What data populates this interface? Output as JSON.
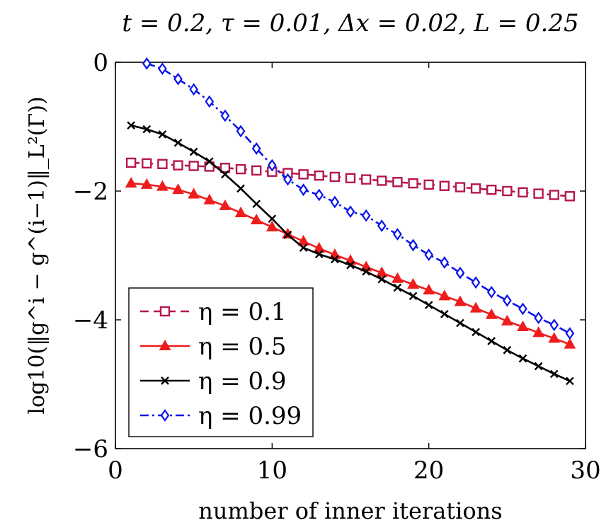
{
  "chart_data": {
    "type": "line",
    "title": "t = 0.2, τ = 0.01, Δx = 0.02, L = 0.25",
    "xlabel": "number of inner iterations",
    "ylabel": "log10(‖g^i − g^(i−1)‖_L²(Γ))",
    "xlim": [
      0,
      30
    ],
    "ylim": [
      -6,
      0
    ],
    "xticks": [
      0,
      10,
      20,
      30
    ],
    "yticks": [
      0,
      -2,
      -4,
      -6
    ],
    "xtick_labels": [
      "0",
      "10",
      "20",
      "30"
    ],
    "ytick_labels": [
      "0",
      "−2",
      "−4",
      "−6"
    ],
    "grid": false,
    "legend_position": "bottom-left",
    "series": [
      {
        "name": "η = 0.1",
        "color": "#b5174e",
        "dash": "dashed",
        "marker": "square",
        "x": [
          1,
          2,
          3,
          4,
          5,
          6,
          7,
          8,
          9,
          10,
          11,
          12,
          13,
          14,
          15,
          16,
          17,
          18,
          19,
          20,
          21,
          22,
          23,
          24,
          25,
          26,
          27,
          28,
          29
        ],
        "y": [
          -1.56,
          -1.57,
          -1.58,
          -1.6,
          -1.61,
          -1.62,
          -1.64,
          -1.66,
          -1.68,
          -1.7,
          -1.72,
          -1.74,
          -1.76,
          -1.78,
          -1.8,
          -1.82,
          -1.84,
          -1.86,
          -1.88,
          -1.9,
          -1.92,
          -1.94,
          -1.96,
          -1.98,
          -2.0,
          -2.02,
          -2.04,
          -2.06,
          -2.08
        ]
      },
      {
        "name": "η = 0.5",
        "color": "#ee1c1c",
        "dash": "solid",
        "marker": "triangle",
        "x": [
          1,
          2,
          3,
          4,
          5,
          6,
          7,
          8,
          9,
          10,
          11,
          12,
          13,
          14,
          15,
          16,
          17,
          18,
          19,
          20,
          21,
          22,
          23,
          24,
          25,
          26,
          27,
          28,
          29
        ],
        "y": [
          -1.88,
          -1.9,
          -1.93,
          -1.98,
          -2.05,
          -2.14,
          -2.23,
          -2.34,
          -2.45,
          -2.56,
          -2.67,
          -2.78,
          -2.89,
          -2.99,
          -3.08,
          -3.18,
          -3.27,
          -3.36,
          -3.45,
          -3.54,
          -3.63,
          -3.72,
          -3.82,
          -3.92,
          -4.02,
          -4.11,
          -4.2,
          -4.29,
          -4.38
        ]
      },
      {
        "name": "η = 0.9",
        "color": "#000000",
        "dash": "solid",
        "marker": "cross",
        "x": [
          1,
          2,
          3,
          4,
          5,
          6,
          7,
          8,
          9,
          10,
          11,
          12,
          13,
          14,
          15,
          16,
          17,
          18,
          19,
          20,
          21,
          22,
          23,
          24,
          25,
          26,
          27,
          28,
          29
        ],
        "y": [
          -0.98,
          -1.04,
          -1.12,
          -1.25,
          -1.39,
          -1.54,
          -1.74,
          -1.96,
          -2.2,
          -2.43,
          -2.68,
          -2.88,
          -2.98,
          -3.06,
          -3.15,
          -3.25,
          -3.37,
          -3.5,
          -3.63,
          -3.77,
          -3.91,
          -4.05,
          -4.19,
          -4.33,
          -4.47,
          -4.6,
          -4.72,
          -4.84,
          -4.95
        ]
      },
      {
        "name": "η = 0.99",
        "color": "#0a14e8",
        "dash": "dashdot",
        "marker": "diamond",
        "x": [
          2,
          3,
          4,
          5,
          6,
          7,
          8,
          9,
          10,
          11,
          12,
          13,
          14,
          15,
          16,
          17,
          18,
          19,
          20,
          21,
          22,
          23,
          24,
          25,
          26,
          27,
          28,
          29
        ],
        "y": [
          -0.02,
          -0.1,
          -0.26,
          -0.42,
          -0.61,
          -0.83,
          -1.07,
          -1.34,
          -1.6,
          -1.82,
          -1.98,
          -2.06,
          -2.17,
          -2.32,
          -2.38,
          -2.54,
          -2.67,
          -2.84,
          -2.99,
          -3.11,
          -3.27,
          -3.42,
          -3.57,
          -3.7,
          -3.83,
          -3.97,
          -4.08,
          -4.21
        ]
      }
    ]
  }
}
